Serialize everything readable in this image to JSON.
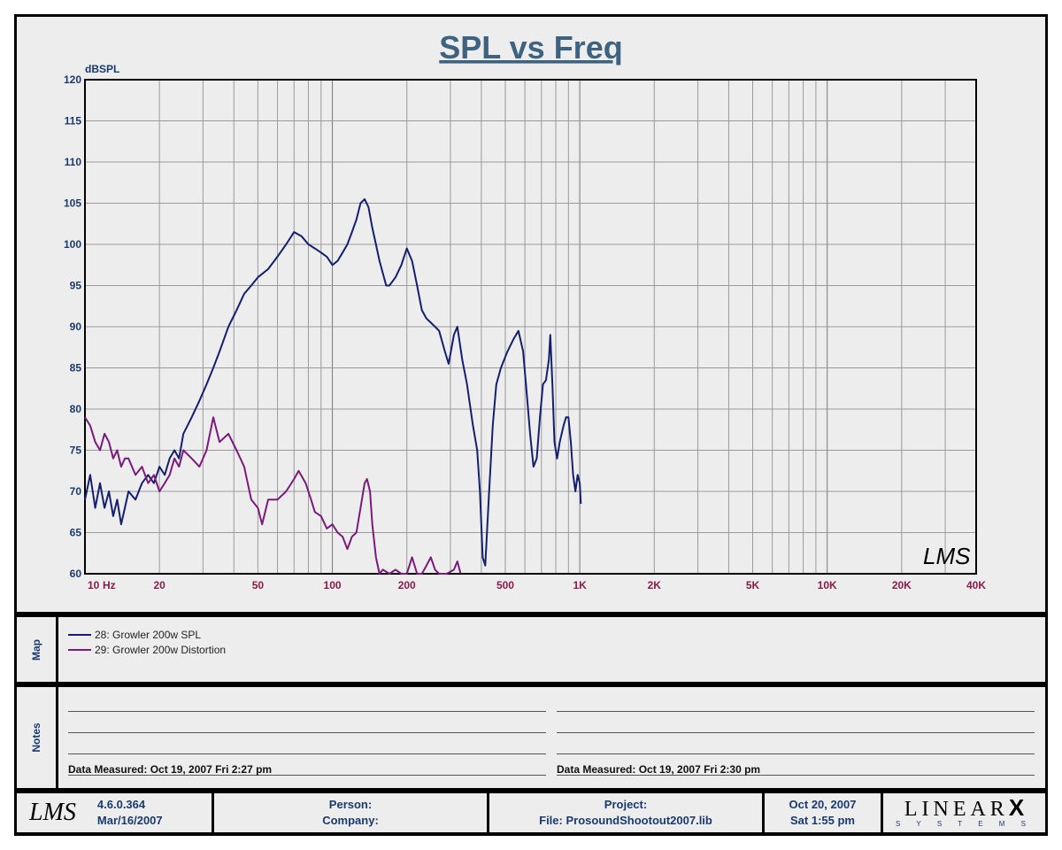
{
  "chart_data": {
    "type": "line",
    "title": "SPL vs Freq",
    "ylabel": "dBSPL",
    "xlabel_unit": "Hz",
    "xscale": "log",
    "xlim": [
      10,
      40000
    ],
    "ylim": [
      60,
      120
    ],
    "grid": true,
    "y_ticks": [
      "120",
      "115",
      "110",
      "105",
      "100",
      "95",
      "90",
      "85",
      "80",
      "75",
      "70",
      "65",
      "60"
    ],
    "x_ticks": [
      {
        "v": 10,
        "label": "10"
      },
      {
        "v": 20,
        "label": "20"
      },
      {
        "v": 50,
        "label": "50"
      },
      {
        "v": 100,
        "label": "100"
      },
      {
        "v": 200,
        "label": "200"
      },
      {
        "v": 500,
        "label": "500"
      },
      {
        "v": 1000,
        "label": "1K"
      },
      {
        "v": 2000,
        "label": "2K"
      },
      {
        "v": 5000,
        "label": "5K"
      },
      {
        "v": 10000,
        "label": "10K"
      },
      {
        "v": 20000,
        "label": "20K"
      },
      {
        "v": 40000,
        "label": "40K"
      }
    ],
    "series": [
      {
        "name": "28: Growler 200w SPL",
        "color": "#14206e",
        "points": [
          [
            10,
            69
          ],
          [
            10.5,
            72
          ],
          [
            11,
            68
          ],
          [
            11.5,
            71
          ],
          [
            12,
            68
          ],
          [
            12.5,
            70
          ],
          [
            13,
            67
          ],
          [
            13.5,
            69
          ],
          [
            14,
            66
          ],
          [
            14.5,
            68
          ],
          [
            15,
            70
          ],
          [
            16,
            69
          ],
          [
            17,
            71
          ],
          [
            18,
            72
          ],
          [
            19,
            71
          ],
          [
            20,
            73
          ],
          [
            21,
            72
          ],
          [
            22,
            74
          ],
          [
            23,
            75
          ],
          [
            24,
            74
          ],
          [
            25,
            77
          ],
          [
            27,
            79
          ],
          [
            29,
            81
          ],
          [
            31,
            83
          ],
          [
            33,
            85
          ],
          [
            35,
            87
          ],
          [
            38,
            90
          ],
          [
            41,
            92
          ],
          [
            44,
            94
          ],
          [
            47,
            95
          ],
          [
            50,
            96
          ],
          [
            55,
            97
          ],
          [
            60,
            98.5
          ],
          [
            65,
            100
          ],
          [
            70,
            101.5
          ],
          [
            75,
            101
          ],
          [
            80,
            100
          ],
          [
            85,
            99.5
          ],
          [
            90,
            99
          ],
          [
            95,
            98.5
          ],
          [
            100,
            97.5
          ],
          [
            105,
            98
          ],
          [
            110,
            99
          ],
          [
            115,
            100
          ],
          [
            120,
            101.5
          ],
          [
            125,
            103
          ],
          [
            130,
            105
          ],
          [
            135,
            105.5
          ],
          [
            140,
            104.5
          ],
          [
            145,
            102
          ],
          [
            150,
            100
          ],
          [
            155,
            98
          ],
          [
            160,
            96.5
          ],
          [
            165,
            95
          ],
          [
            170,
            95
          ],
          [
            180,
            96
          ],
          [
            190,
            97.5
          ],
          [
            200,
            99.5
          ],
          [
            210,
            98
          ],
          [
            220,
            95
          ],
          [
            230,
            92
          ],
          [
            240,
            91
          ],
          [
            250,
            90.5
          ],
          [
            260,
            90
          ],
          [
            270,
            89.5
          ],
          [
            285,
            87
          ],
          [
            295,
            85.5
          ],
          [
            310,
            89
          ],
          [
            320,
            90
          ],
          [
            335,
            86
          ],
          [
            350,
            83
          ],
          [
            370,
            78
          ],
          [
            385,
            75
          ],
          [
            395,
            70
          ],
          [
            405,
            62
          ],
          [
            415,
            61
          ],
          [
            430,
            70
          ],
          [
            445,
            78
          ],
          [
            460,
            83
          ],
          [
            480,
            85
          ],
          [
            510,
            87
          ],
          [
            540,
            88.5
          ],
          [
            565,
            89.5
          ],
          [
            590,
            87
          ],
          [
            610,
            82
          ],
          [
            630,
            77
          ],
          [
            650,
            73
          ],
          [
            670,
            74
          ],
          [
            690,
            79
          ],
          [
            710,
            83
          ],
          [
            730,
            83.5
          ],
          [
            750,
            86
          ],
          [
            760,
            89
          ],
          [
            775,
            83
          ],
          [
            790,
            76
          ],
          [
            810,
            74
          ],
          [
            830,
            76
          ],
          [
            860,
            78
          ],
          [
            880,
            79
          ],
          [
            900,
            79
          ],
          [
            920,
            76
          ],
          [
            940,
            72
          ],
          [
            960,
            70
          ],
          [
            980,
            72
          ],
          [
            1000,
            71
          ],
          [
            1010,
            68.5
          ]
        ]
      },
      {
        "name": "29: Growler 200w Distortion",
        "color": "#7a1a7a",
        "points": [
          [
            10,
            79
          ],
          [
            10.5,
            78
          ],
          [
            11,
            76
          ],
          [
            11.5,
            75
          ],
          [
            12,
            77
          ],
          [
            12.5,
            76
          ],
          [
            13,
            74
          ],
          [
            13.5,
            75
          ],
          [
            14,
            73
          ],
          [
            14.5,
            74
          ],
          [
            15,
            74
          ],
          [
            16,
            72
          ],
          [
            17,
            73
          ],
          [
            18,
            71
          ],
          [
            19,
            72
          ],
          [
            20,
            70
          ],
          [
            21,
            71
          ],
          [
            22,
            72
          ],
          [
            23,
            74
          ],
          [
            24,
            73
          ],
          [
            25,
            75
          ],
          [
            27,
            74
          ],
          [
            29,
            73
          ],
          [
            31,
            75
          ],
          [
            33,
            79
          ],
          [
            35,
            76
          ],
          [
            38,
            77
          ],
          [
            41,
            75
          ],
          [
            44,
            73
          ],
          [
            47,
            69
          ],
          [
            50,
            68
          ],
          [
            52,
            66
          ],
          [
            55,
            69
          ],
          [
            60,
            69
          ],
          [
            65,
            70
          ],
          [
            70,
            71.5
          ],
          [
            73,
            72.5
          ],
          [
            78,
            71
          ],
          [
            82,
            69
          ],
          [
            85,
            67.5
          ],
          [
            90,
            67
          ],
          [
            95,
            65.5
          ],
          [
            100,
            66
          ],
          [
            105,
            65
          ],
          [
            110,
            64.5
          ],
          [
            115,
            63
          ],
          [
            120,
            64.5
          ],
          [
            125,
            65
          ],
          [
            130,
            68
          ],
          [
            135,
            71
          ],
          [
            138,
            71.5
          ],
          [
            142,
            70
          ],
          [
            145,
            66
          ],
          [
            150,
            62
          ],
          [
            155,
            60
          ],
          [
            160,
            60.5
          ],
          [
            170,
            60
          ],
          [
            180,
            60.5
          ],
          [
            190,
            60
          ],
          [
            200,
            60
          ],
          [
            210,
            62
          ],
          [
            220,
            60
          ],
          [
            230,
            60
          ],
          [
            240,
            61
          ],
          [
            250,
            62
          ],
          [
            260,
            60.5
          ],
          [
            270,
            60
          ],
          [
            290,
            60
          ],
          [
            310,
            60.5
          ],
          [
            320,
            61.5
          ],
          [
            330,
            60
          ]
        ]
      }
    ]
  },
  "map": {
    "label": "Map",
    "items": [
      {
        "text": "28: Growler 200w SPL",
        "color": "#14206e"
      },
      {
        "text": "29: Growler 200w Distortion",
        "color": "#7a1a7a"
      }
    ]
  },
  "notes": {
    "label": "Notes",
    "left_measured": "Data Measured: Oct 19, 2007  Fri  2:27 pm",
    "right_measured": "Data Measured: Oct 19, 2007  Fri  2:30 pm"
  },
  "footer": {
    "lms_mark": "LMS",
    "version": "4.6.0.364",
    "version_date": "Mar/16/2007",
    "person": "Person:",
    "company": "Company:",
    "project": "Project:",
    "file": "File: ProsoundShootout2007.lib",
    "date": "Oct 20, 2007",
    "time": "Sat  1:55 pm",
    "brand": "LINEAR",
    "brand_x": "X",
    "brand_sub": "S Y S T E M S"
  },
  "watermark": "LMS"
}
